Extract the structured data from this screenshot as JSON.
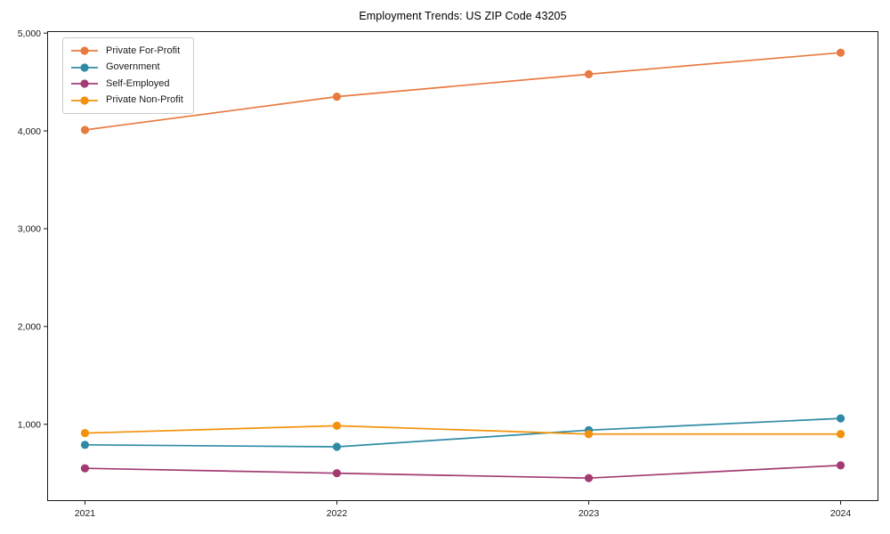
{
  "figure": {
    "title": "Employment Trends: US ZIP Code 43205"
  },
  "chart_data": {
    "type": "line",
    "title": "Employment Trends: US ZIP Code 43205",
    "xlabel": "",
    "ylabel": "",
    "x": [
      2021,
      2022,
      2023,
      2024
    ],
    "x_tick_labels": [
      "2021",
      "2022",
      "2023",
      "2024"
    ],
    "series": [
      {
        "name": "Private For-Profit",
        "color": "#E87A40",
        "values": [
          4010,
          4350,
          4580,
          4800
        ]
      },
      {
        "name": "Government",
        "color": "#2F8BA5",
        "values": [
          790,
          770,
          940,
          1060
        ]
      },
      {
        "name": "Self-Employed",
        "color": "#A23B72",
        "values": [
          550,
          500,
          450,
          580
        ]
      },
      {
        "name": "Private Non-Profit",
        "color": "#F3920A",
        "values": [
          910,
          985,
          900,
          900
        ]
      }
    ],
    "y_ticks": [
      1000,
      2000,
      3000,
      4000,
      5000
    ],
    "y_tick_labels": [
      "1,000",
      "2,000",
      "3,000",
      "4,000",
      "5,000"
    ],
    "ylim": [
      215,
      5020
    ],
    "xlim": [
      2020.85,
      2024.15
    ],
    "grid": false,
    "legend_position": "upper-left",
    "marker": "circle",
    "axis_color": "#1a1a1a",
    "line_width": 1.7,
    "marker_radius": 4.6
  }
}
